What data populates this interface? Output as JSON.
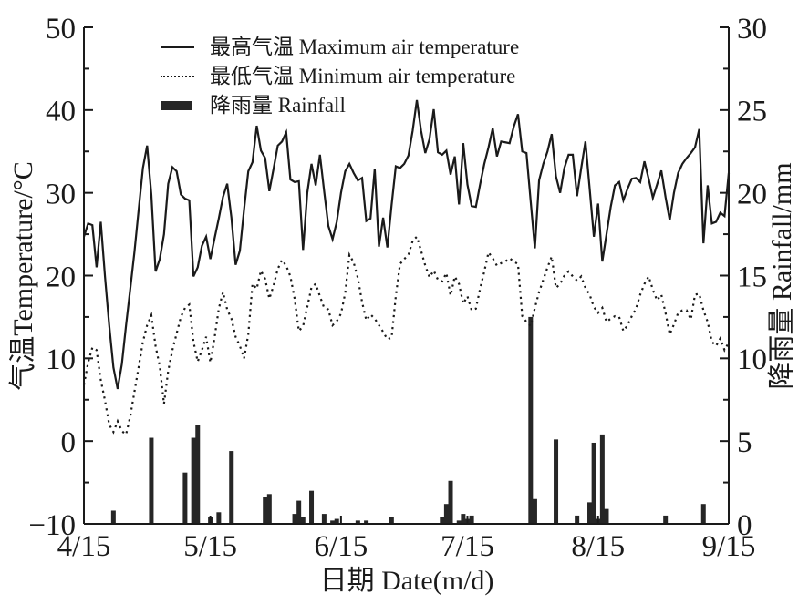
{
  "chart_data": {
    "type": "line+bar",
    "x": {
      "label": "日期 Date(m/d)",
      "total_days": 153,
      "tick_days": [
        0,
        30,
        61,
        91,
        122,
        153
      ],
      "tick_labels": [
        "4/15",
        "5/15",
        "6/15",
        "7/15",
        "8/15",
        "9/15"
      ]
    },
    "y_left": {
      "label": "气温Temperature/°C",
      "min": -10,
      "max": 50,
      "major_ticks": [
        -10,
        0,
        10,
        20,
        30,
        40,
        50
      ],
      "minor_step": 5
    },
    "y_right": {
      "label": "降雨量 Rainfall/mm",
      "min": 0,
      "max": 30,
      "major_ticks": [
        0,
        5,
        10,
        15,
        20,
        25,
        30
      ],
      "minor_step": 2.5
    },
    "legend": [
      {
        "swatch": "solid-line",
        "label": "最高气温 Maximum air temperature"
      },
      {
        "swatch": "dotted-line",
        "label": "最低气温 Minimum air temperature"
      },
      {
        "swatch": "filled-bar",
        "label": "降雨量 Rainfall"
      }
    ],
    "series": [
      {
        "name": "最高气温 Maximum air temperature",
        "type": "line",
        "style": "solid",
        "axis": "left",
        "values": [
          24.7,
          26.3,
          26.1,
          21,
          26.5,
          19.9,
          14,
          8.9,
          6.3,
          9.3,
          14,
          18.4,
          22.9,
          28,
          33,
          35.7,
          29.8,
          20.5,
          22,
          25,
          31.1,
          33.1,
          32.6,
          29.8,
          29.3,
          29.1,
          19.9,
          21,
          23.6,
          24.7,
          22,
          24.5,
          26.9,
          29.5,
          31.1,
          27,
          21.3,
          23,
          28,
          32.6,
          33.7,
          38.1,
          35.1,
          34.2,
          30.2,
          32.9,
          35.7,
          36.2,
          37.3,
          31.6,
          31.3,
          31.4,
          23.1,
          30,
          33.5,
          30.9,
          34.6,
          30.2,
          26,
          24.4,
          26.5,
          30,
          32.6,
          33.5,
          32.4,
          31.5,
          31.8,
          26.6,
          26.9,
          32.9,
          23.5,
          27,
          23.4,
          28.5,
          33.2,
          33,
          33.5,
          34.5,
          37.5,
          41.2,
          37.5,
          34.8,
          36.5,
          40.1,
          34.9,
          34.6,
          35.1,
          32.2,
          34.4,
          28.6,
          36,
          31,
          28.4,
          28.3,
          31,
          33.5,
          35.5,
          37.8,
          34.4,
          36.2,
          36.1,
          36,
          38,
          39.5,
          35,
          34.8,
          29,
          23.3,
          31.5,
          33.5,
          35,
          37.1,
          32,
          30,
          33,
          34.6,
          34.6,
          29.6,
          33,
          36.2,
          30.5,
          24.7,
          28.7,
          21.7,
          25,
          28.3,
          30.9,
          31.3,
          29.1,
          30.5,
          31.7,
          31.8,
          31.3,
          33.8,
          31.7,
          29.4,
          31,
          32.7,
          29.5,
          26.7,
          30,
          32.4,
          33.5,
          34.2,
          34.8,
          35.5,
          37.7,
          23.9,
          30.9,
          26.3,
          26.5,
          27.6,
          27.2,
          32.4
        ]
      },
      {
        "name": "最低气温 Minimum air temperature",
        "type": "line",
        "style": "dotted",
        "axis": "left",
        "values": [
          6.8,
          9.5,
          11.3,
          11,
          7.4,
          4.9,
          2,
          1.1,
          2.4,
          1.2,
          0.8,
          3,
          6,
          9,
          12,
          14,
          15.2,
          11.5,
          9,
          4.5,
          8.5,
          11,
          13,
          15,
          16.1,
          16.5,
          12,
          9.6,
          11,
          12.6,
          9.5,
          12.5,
          16,
          18,
          15.9,
          14.8,
          12.6,
          11.5,
          10,
          12.9,
          19,
          18.4,
          20.6,
          19.6,
          17.2,
          18.8,
          20.8,
          21.9,
          21.2,
          19.9,
          17.2,
          13.3,
          13.9,
          16.2,
          18.6,
          19,
          17.5,
          16.1,
          15.9,
          14,
          14.5,
          15.4,
          17.9,
          22.5,
          21.6,
          19.7,
          16.8,
          14.6,
          15.3,
          14.8,
          14,
          13.2,
          12.3,
          12.5,
          17.5,
          21.4,
          22,
          22.5,
          24.2,
          24.7,
          23,
          21.2,
          19.8,
          20.6,
          19.5,
          19.3,
          20.3,
          17.6,
          19.9,
          19,
          16.6,
          17.5,
          15.8,
          16,
          18.4,
          20.5,
          22.8,
          22.1,
          21.2,
          21.5,
          21.7,
          22.1,
          21.7,
          21.4,
          15.1,
          14.4,
          13.9,
          16.1,
          18,
          19.5,
          21,
          22.3,
          18.5,
          19,
          20,
          20.5,
          19.9,
          19.4,
          19.9,
          18.5,
          17.7,
          16.2,
          15.5,
          16.1,
          14.4,
          14.8,
          15.1,
          15,
          13.3,
          14,
          15.1,
          16,
          17.7,
          19,
          19.9,
          18.3,
          17,
          17.7,
          15.5,
          12.9,
          14.1,
          15.5,
          15.8,
          15.8,
          14.7,
          17.7,
          17.8,
          15.8,
          14.4,
          12,
          11.5,
          12.4,
          11,
          11.9
        ]
      },
      {
        "name": "降雨量 Rainfall",
        "type": "bar",
        "axis": "right",
        "events": [
          {
            "day": 7,
            "mm": 0.8
          },
          {
            "day": 16,
            "mm": 5.2
          },
          {
            "day": 24,
            "mm": 3.1
          },
          {
            "day": 26,
            "mm": 5.2
          },
          {
            "day": 27,
            "mm": 6.0
          },
          {
            "day": 30,
            "mm": 0.4
          },
          {
            "day": 32,
            "mm": 0.7
          },
          {
            "day": 35,
            "mm": 4.4
          },
          {
            "day": 43,
            "mm": 1.6
          },
          {
            "day": 44,
            "mm": 1.8
          },
          {
            "day": 50,
            "mm": 0.6
          },
          {
            "day": 51,
            "mm": 1.4
          },
          {
            "day": 52,
            "mm": 0.4
          },
          {
            "day": 54,
            "mm": 2.0
          },
          {
            "day": 57,
            "mm": 0.6
          },
          {
            "day": 59,
            "mm": 0.2
          },
          {
            "day": 60,
            "mm": 0.3
          },
          {
            "day": 65,
            "mm": 0.2
          },
          {
            "day": 67,
            "mm": 0.2
          },
          {
            "day": 73,
            "mm": 0.4
          },
          {
            "day": 85,
            "mm": 0.4
          },
          {
            "day": 86,
            "mm": 1.2
          },
          {
            "day": 87,
            "mm": 2.6
          },
          {
            "day": 89,
            "mm": 0.2
          },
          {
            "day": 90,
            "mm": 0.6
          },
          {
            "day": 91,
            "mm": 0.3
          },
          {
            "day": 92,
            "mm": 0.5
          },
          {
            "day": 106,
            "mm": 12.5
          },
          {
            "day": 107,
            "mm": 1.5
          },
          {
            "day": 112,
            "mm": 5.1
          },
          {
            "day": 117,
            "mm": 0.5
          },
          {
            "day": 120,
            "mm": 1.3
          },
          {
            "day": 121,
            "mm": 4.9
          },
          {
            "day": 122,
            "mm": 0.3
          },
          {
            "day": 123,
            "mm": 5.4
          },
          {
            "day": 124,
            "mm": 0.9
          },
          {
            "day": 138,
            "mm": 0.5
          },
          {
            "day": 147,
            "mm": 1.2
          }
        ]
      }
    ],
    "layout": {
      "grid": false,
      "legend_position": "top-left-inside"
    },
    "colors": {
      "line": "#1a1a1a",
      "bar": "#262626",
      "background": "#ffffff"
    }
  }
}
